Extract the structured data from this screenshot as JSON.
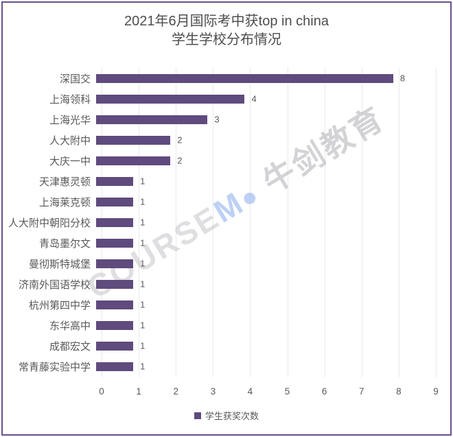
{
  "title": {
    "line1": "2021年6月国际考中获top in china",
    "line2": "学生学校分布情况"
  },
  "chart_data": {
    "type": "bar",
    "orientation": "horizontal",
    "title": "2021年6月国际考中获top in china 学生学校分布情况",
    "categories": [
      "深国交",
      "上海领科",
      "上海光华",
      "人大附中",
      "大庆一中",
      "天津惠灵顿",
      "上海莱克顿",
      "人大附中朝阳分校",
      "青岛墨尔文",
      "曼彻斯特城堡",
      "济南外国语学校",
      "杭州第四中学",
      "东华高中",
      "成都宏文",
      "常青藤实验中学"
    ],
    "values": [
      8,
      4,
      3,
      2,
      2,
      1,
      1,
      1,
      1,
      1,
      1,
      1,
      1,
      1,
      1
    ],
    "series": [
      {
        "name": "学生获奖次数",
        "values": [
          8,
          4,
          3,
          2,
          2,
          1,
          1,
          1,
          1,
          1,
          1,
          1,
          1,
          1,
          1
        ]
      }
    ],
    "data_labels": [
      "8",
      "4",
      "3",
      "2",
      "2",
      "1",
      "1",
      "1",
      "1",
      "1",
      "1",
      "1",
      "1",
      "1",
      "1"
    ],
    "xlim": [
      0,
      9
    ],
    "x_ticks": [
      "0",
      "1",
      "2",
      "3",
      "4",
      "5",
      "6",
      "7",
      "8",
      "9"
    ],
    "grid": true,
    "legend_position": "bottom",
    "bar_color": "#5f4b7d"
  },
  "legend": {
    "label": "学生获奖次数",
    "swatch_color": "#5f4b7d"
  },
  "watermark": {
    "text_left": "COURSE",
    "logo_m": "M",
    "logo_dot": "●",
    "text_right": " 牛剑教育"
  },
  "colors": {
    "bar": "#5f4b7d",
    "frame_border": "#69508c",
    "gridline": "#e9e9ec",
    "axis_text": "#595959",
    "title_text": "#4d4d4d",
    "watermark_gray": "#dcdcdf",
    "watermark_blue": "#c3d3f3"
  }
}
